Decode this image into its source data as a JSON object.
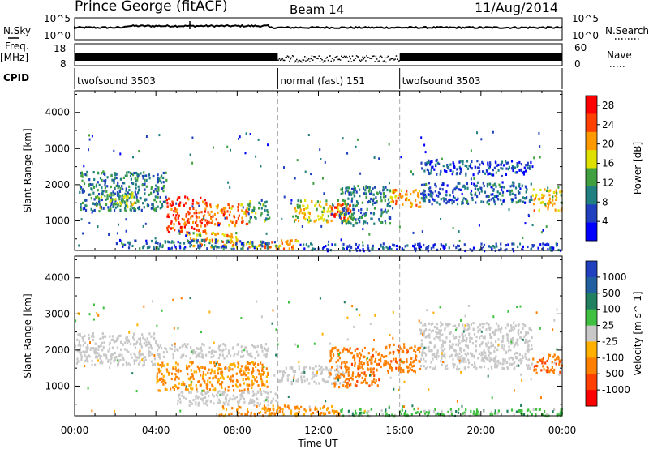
{
  "header": {
    "radar": "Prince George (fitACF)",
    "beam": "Beam 14",
    "date": "11/Aug/2014"
  },
  "strip_labels": {
    "nsky": "N.Sky",
    "nsearch": "N.Search",
    "freq": "Freq.",
    "freq_unit": "[MHz]",
    "nave": "Nave",
    "cpid": "CPID",
    "nsky_ticks": [
      "10^5",
      "10^0"
    ],
    "nsearch_ticks": [
      "10^5",
      "10^0"
    ],
    "freq_ticks": [
      "18",
      "8"
    ],
    "nave_ticks": [
      "60",
      "0"
    ]
  },
  "cpid_segments": [
    {
      "start": 0,
      "end": 10,
      "label": "twofsound 3503"
    },
    {
      "start": 10,
      "end": 16,
      "label": "normal (fast) 151"
    },
    {
      "start": 16,
      "end": 24,
      "label": "twofsound 3503"
    }
  ],
  "chart_data": [
    {
      "type": "heatmap",
      "title": "Power",
      "xlabel": "Time UT",
      "ylabel": "Slant Range [km]",
      "x_ticks": [
        "00:00",
        "04:00",
        "08:00",
        "12:00",
        "16:00",
        "20:00",
        "00:00"
      ],
      "y_ticks": [
        1000,
        2000,
        3000,
        4000
      ],
      "xlim": [
        0,
        24
      ],
      "ylim": [
        180,
        4600
      ],
      "colorbar": {
        "label": "Power [dB]",
        "ticks": [
          4,
          8,
          12,
          16,
          20,
          24,
          28
        ],
        "range": [
          0,
          30
        ],
        "colors": [
          "#0000ff",
          "#2040c0",
          "#208080",
          "#40a040",
          "#e0e000",
          "#ff9900",
          "#ff4000",
          "#ff0000"
        ]
      },
      "regions": [
        {
          "t": [
            0.2,
            4.5
          ],
          "r": [
            1300,
            2400
          ],
          "level": 10
        },
        {
          "t": [
            1.0,
            3.0
          ],
          "r": [
            1400,
            1800
          ],
          "level": 16
        },
        {
          "t": [
            4.5,
            6.5
          ],
          "r": [
            700,
            1700
          ],
          "level": 26
        },
        {
          "t": [
            6.5,
            8.5
          ],
          "r": [
            900,
            1500
          ],
          "level": 24
        },
        {
          "t": [
            8.5,
            9.5
          ],
          "r": [
            1000,
            1600
          ],
          "level": 12
        },
        {
          "t": [
            5.5,
            8.0
          ],
          "r": [
            300,
            700
          ],
          "level": 20
        },
        {
          "t": [
            8.0,
            11.0
          ],
          "r": [
            250,
            500
          ],
          "level": 22
        },
        {
          "t": [
            10.8,
            13.5
          ],
          "r": [
            1000,
            1600
          ],
          "level": 18
        },
        {
          "t": [
            12.5,
            13.6
          ],
          "r": [
            1100,
            1500
          ],
          "level": 26
        },
        {
          "t": [
            13.0,
            15.5
          ],
          "r": [
            900,
            2000
          ],
          "level": 10
        },
        {
          "t": [
            15.5,
            17.0
          ],
          "r": [
            1400,
            1900
          ],
          "level": 22
        },
        {
          "t": [
            17.0,
            22.5
          ],
          "r": [
            1500,
            2100
          ],
          "level": 8
        },
        {
          "t": [
            17.0,
            22.5
          ],
          "r": [
            2300,
            2700
          ],
          "level": 6
        },
        {
          "t": [
            22.5,
            24.0
          ],
          "r": [
            1300,
            1900
          ],
          "level": 20
        },
        {
          "t": [
            2.0,
            10.0
          ],
          "r": [
            250,
            500
          ],
          "level": 8
        },
        {
          "t": [
            11.0,
            24.0
          ],
          "r": [
            200,
            400
          ],
          "level": 6
        }
      ]
    },
    {
      "type": "heatmap",
      "title": "Velocity",
      "xlabel": "Time UT",
      "ylabel": "Slant Range [km]",
      "x_ticks": [
        "00:00",
        "04:00",
        "08:00",
        "12:00",
        "16:00",
        "20:00",
        "00:00"
      ],
      "y_ticks": [
        1000,
        2000,
        3000,
        4000
      ],
      "xlim": [
        0,
        24
      ],
      "ylim": [
        180,
        4600
      ],
      "colorbar": {
        "label": "Velocity [m s^-1]",
        "ticks": [
          "1000",
          "500",
          "100",
          "25",
          "-25",
          "-100",
          "-500",
          "-1000"
        ],
        "colors": [
          "#2040c0",
          "#2060a0",
          "#208060",
          "#40c040",
          "#c8c8c8",
          "#ffb000",
          "#ff8000",
          "#ff4000",
          "#ff0000"
        ]
      },
      "regions": [
        {
          "t": [
            0.0,
            4.0
          ],
          "r": [
            1600,
            2500
          ],
          "level": 0
        },
        {
          "t": [
            4.0,
            9.5
          ],
          "r": [
            900,
            1700
          ],
          "level": -120
        },
        {
          "t": [
            4.0,
            9.5
          ],
          "r": [
            1800,
            2200
          ],
          "level": 0
        },
        {
          "t": [
            5.0,
            10.0
          ],
          "r": [
            500,
            900
          ],
          "level": 0
        },
        {
          "t": [
            10.0,
            13.5
          ],
          "r": [
            1100,
            1600
          ],
          "level": 0
        },
        {
          "t": [
            12.5,
            15.0
          ],
          "r": [
            1000,
            2100
          ],
          "level": -350
        },
        {
          "t": [
            15.0,
            17.0
          ],
          "r": [
            1400,
            2200
          ],
          "level": -350
        },
        {
          "t": [
            17.0,
            22.5
          ],
          "r": [
            1500,
            2800
          ],
          "level": 0
        },
        {
          "t": [
            22.5,
            24.0
          ],
          "r": [
            1400,
            1900
          ],
          "level": -400
        },
        {
          "t": [
            7.0,
            13.0
          ],
          "r": [
            200,
            500
          ],
          "level": -110
        },
        {
          "t": [
            13.0,
            24.0
          ],
          "r": [
            200,
            400
          ],
          "level": 60
        }
      ]
    }
  ]
}
